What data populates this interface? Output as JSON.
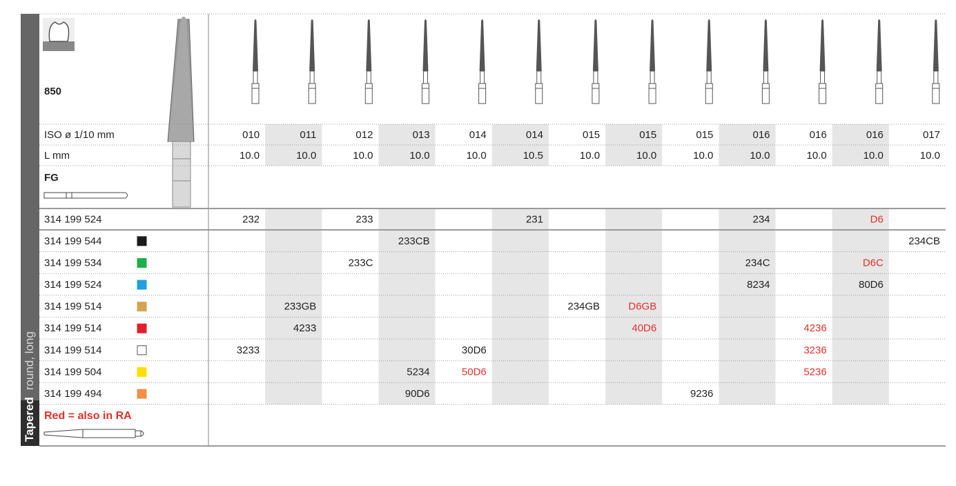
{
  "header": {
    "model": "850",
    "iso_label": "ISO ø 1/10 mm",
    "length_label": "L mm",
    "shank": "FG"
  },
  "side_label": {
    "bold": "Tapered",
    "rest": "round, long"
  },
  "columns": {
    "iso": [
      "010",
      "011",
      "012",
      "013",
      "014",
      "014",
      "015",
      "015",
      "015",
      "016",
      "016",
      "016",
      "017"
    ],
    "length": [
      "10.0",
      "10.0",
      "10.0",
      "10.0",
      "10.0",
      "10.5",
      "10.0",
      "10.0",
      "10.0",
      "10.0",
      "10.0",
      "10.0",
      "10.0"
    ]
  },
  "rows": [
    {
      "ref": "314 199 524",
      "swatch": null,
      "cells": [
        "232",
        null,
        "233",
        null,
        null,
        "231",
        null,
        null,
        null,
        "234",
        null,
        "D6",
        null
      ],
      "red": [
        11
      ]
    },
    {
      "ref": "314 199 544",
      "swatch": "#1a1a1a",
      "cells": [
        null,
        null,
        null,
        "233CB",
        null,
        null,
        null,
        null,
        null,
        null,
        null,
        null,
        "234CB"
      ],
      "red": []
    },
    {
      "ref": "314 199 534",
      "swatch": "#1fae4b",
      "cells": [
        null,
        null,
        "233C",
        null,
        null,
        null,
        null,
        null,
        null,
        "234C",
        null,
        "D6C",
        null
      ],
      "red": [
        11
      ]
    },
    {
      "ref": "314 199 524",
      "swatch": "#1e9fe0",
      "cells": [
        null,
        null,
        null,
        null,
        null,
        null,
        null,
        null,
        null,
        "8234",
        null,
        "80D6",
        null
      ],
      "red": []
    },
    {
      "ref": "314 199 514",
      "swatch": "#d4a452",
      "cells": [
        null,
        "233GB",
        null,
        null,
        null,
        null,
        "234GB",
        "D6GB",
        null,
        null,
        null,
        null,
        null
      ],
      "red": [
        7
      ]
    },
    {
      "ref": "314 199 514",
      "swatch": "#e3202a",
      "cells": [
        null,
        "4233",
        null,
        null,
        null,
        null,
        null,
        "40D6",
        null,
        null,
        "4236",
        null,
        null
      ],
      "red": [
        7,
        10
      ]
    },
    {
      "ref": "314 199 514",
      "swatch": "#ffffff",
      "cells": [
        "3233",
        null,
        null,
        null,
        "30D6",
        null,
        null,
        null,
        null,
        null,
        "3236",
        null,
        null
      ],
      "red": [
        10
      ]
    },
    {
      "ref": "314 199 504",
      "swatch": "#ffe100",
      "cells": [
        null,
        null,
        null,
        "5234",
        "50D6",
        null,
        null,
        null,
        null,
        null,
        "5236",
        null,
        null
      ],
      "red": [
        4,
        10
      ]
    },
    {
      "ref": "314 199 494",
      "swatch": "#f0904a",
      "cells": [
        null,
        null,
        null,
        "90D6",
        null,
        null,
        null,
        null,
        "9236",
        null,
        null,
        null,
        null
      ],
      "red": []
    }
  ],
  "footer": {
    "note": "Red = also in RA"
  }
}
